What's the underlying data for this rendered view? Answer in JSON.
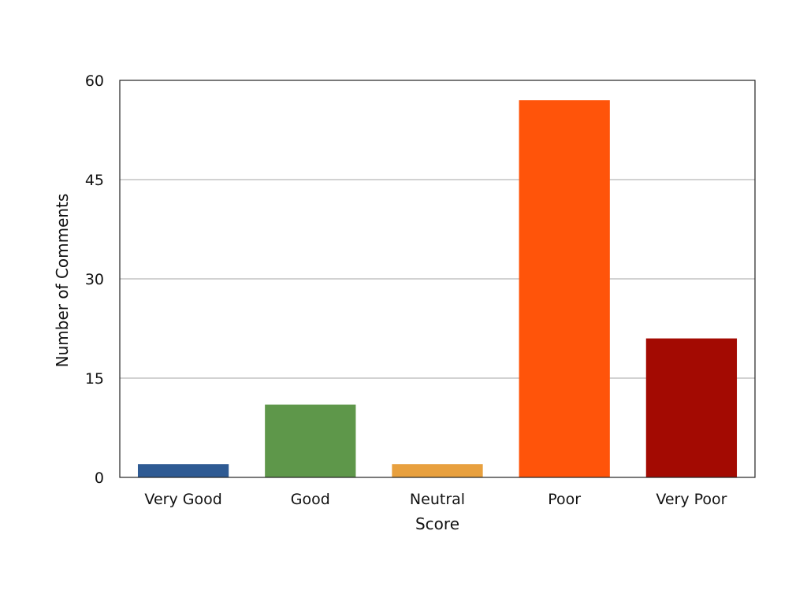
{
  "chart_data": {
    "type": "bar",
    "title": "",
    "xlabel": "Score",
    "ylabel": "Number of Comments",
    "categories": [
      "Very Good",
      "Good",
      "Neutral",
      "Poor",
      "Very Poor"
    ],
    "values": [
      2,
      11,
      2,
      57,
      21
    ],
    "colors": [
      "#2E5A93",
      "#5E974A",
      "#E8A03E",
      "#FF540A",
      "#A30A02"
    ],
    "ylim": [
      0,
      60
    ],
    "yticks": [
      0,
      15,
      30,
      45,
      60
    ],
    "grid": true,
    "legend": "none"
  }
}
